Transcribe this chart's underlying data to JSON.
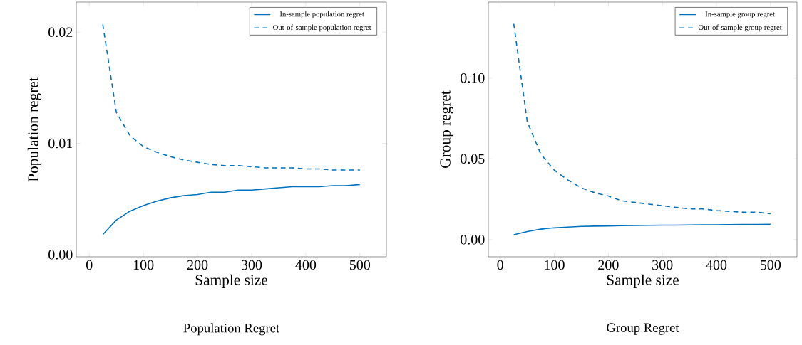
{
  "chart_data": [
    {
      "type": "line",
      "title": "Population Regret",
      "xlabel": "Sample size",
      "ylabel": "Population regret",
      "x": [
        25,
        50,
        75,
        100,
        125,
        150,
        175,
        200,
        225,
        250,
        275,
        300,
        325,
        350,
        375,
        400,
        425,
        450,
        475,
        500
      ],
      "series": [
        {
          "name": "In-sample population regret",
          "color": "#0072bd",
          "line_style": "solid",
          "values": [
            0.0018,
            0.0031,
            0.0039,
            0.0044,
            0.0048,
            0.0051,
            0.0053,
            0.0054,
            0.0056,
            0.0056,
            0.0058,
            0.0058,
            0.0059,
            0.006,
            0.0061,
            0.0061,
            0.0061,
            0.0062,
            0.0062,
            0.0063
          ]
        },
        {
          "name": "Out-of-sample population regret",
          "color": "#0072bd",
          "line_style": "dashed",
          "values": [
            0.0207,
            0.0128,
            0.0107,
            0.0097,
            0.0092,
            0.0088,
            0.0085,
            0.0083,
            0.0081,
            0.008,
            0.008,
            0.0079,
            0.0078,
            0.0078,
            0.0078,
            0.0077,
            0.0077,
            0.0076,
            0.0076,
            0.0076
          ]
        }
      ],
      "xlim": [
        -24,
        549
      ],
      "ylim": [
        -0.0002,
        0.0227
      ],
      "xticks": [
        0,
        100,
        200,
        300,
        400,
        500
      ],
      "yticks": [
        {
          "value": 0,
          "label": "0.00"
        },
        {
          "value": 0.01,
          "label": "0.01"
        },
        {
          "value": 0.02,
          "label": "0.02"
        }
      ],
      "legend": "top right",
      "marker": "none"
    },
    {
      "type": "line",
      "title": "Group Regret",
      "xlabel": "Sample size",
      "ylabel": "Group regret",
      "x": [
        25,
        50,
        75,
        100,
        125,
        150,
        175,
        200,
        225,
        250,
        275,
        300,
        325,
        350,
        375,
        400,
        425,
        450,
        475,
        500
      ],
      "series": [
        {
          "name": "In-sample group regret",
          "color": "#0072bd",
          "line_style": "solid",
          "values": [
            0.003,
            0.005,
            0.0065,
            0.0073,
            0.0078,
            0.0082,
            0.0084,
            0.0085,
            0.0087,
            0.0088,
            0.0089,
            0.009,
            0.009,
            0.0091,
            0.0092,
            0.0092,
            0.0093,
            0.0094,
            0.0094,
            0.0095
          ]
        },
        {
          "name": "Out-of-sample group regret",
          "color": "#0072bd",
          "line_style": "dashed",
          "values": [
            0.1335,
            0.073,
            0.053,
            0.043,
            0.037,
            0.032,
            0.029,
            0.027,
            0.024,
            0.023,
            0.022,
            0.021,
            0.02,
            0.019,
            0.019,
            0.018,
            0.0175,
            0.017,
            0.017,
            0.016
          ]
        }
      ],
      "xlim": [
        -22,
        549
      ],
      "ylim": [
        -0.0106,
        0.147
      ],
      "xticks": [
        0,
        100,
        200,
        300,
        400,
        500
      ],
      "yticks": [
        {
          "value": 0,
          "label": "0.00"
        },
        {
          "value": 0.05,
          "label": "0.05"
        },
        {
          "value": 0.1,
          "label": "0.10"
        }
      ],
      "legend": "top right",
      "marker": "none"
    }
  ]
}
